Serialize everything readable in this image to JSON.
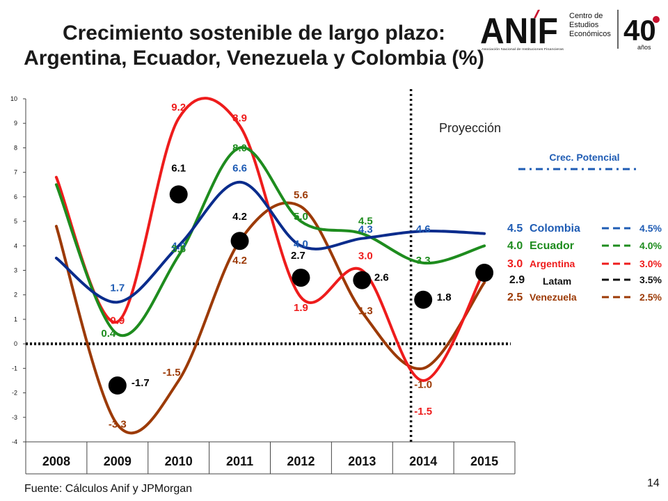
{
  "title_line1": "Crecimiento sostenible de largo plazo:",
  "title_line2": "Argentina, Ecuador, Venezuela y Colombia (%)",
  "logo": {
    "brand": "ANIF",
    "subtitle": "Asociación Nacional de Instituciones Financieras",
    "centro_line1": "Centro de",
    "centro_line2": "Estudios",
    "centro_line3": "Económicos",
    "anniversary_number": "40",
    "anniversary_word": "años"
  },
  "source": "Fuente: Cálculos Anif y  JPMorgan",
  "page_number": "14",
  "chart_data": {
    "type": "line",
    "categories": [
      "2008",
      "2009",
      "2010",
      "2011",
      "2012",
      "2013",
      "2014",
      "2015"
    ],
    "ylim": [
      -4,
      10
    ],
    "yticks": [
      "10",
      "9",
      "8",
      "7",
      "6",
      "5",
      "4",
      "3",
      "2",
      "1",
      "0",
      "-1",
      "-2",
      "-3",
      "-4"
    ],
    "projection_label": "Proyección",
    "potential_header": "Crec. Potencial",
    "series": [
      {
        "name": "Colombia",
        "color": "#0a2c8c",
        "values": [
          3.5,
          1.7,
          4.0,
          6.6,
          4.0,
          4.3,
          4.6,
          4.5
        ],
        "potential": "4.5%",
        "end_label": "4.5"
      },
      {
        "name": "Ecuador",
        "color": "#1e8c1e",
        "values": [
          6.5,
          0.4,
          3.6,
          8.0,
          5.0,
          4.5,
          3.3,
          4.0
        ],
        "potential": "4.0%",
        "end_label": "4.0"
      },
      {
        "name": "Argentina",
        "color": "#ee1c1c",
        "values": [
          6.8,
          0.9,
          9.2,
          8.9,
          1.9,
          3.0,
          -1.5,
          3.0
        ],
        "potential": "3.0%",
        "end_label": "3.0"
      },
      {
        "name": "Latam",
        "color": "#000000",
        "values": [
          null,
          -1.7,
          6.1,
          4.2,
          2.7,
          2.6,
          1.8,
          2.9
        ],
        "potential": "3.5%",
        "end_label": "2.9"
      },
      {
        "name": "Venezuela",
        "color": "#9c3a06",
        "values": [
          4.8,
          -3.3,
          -1.5,
          4.2,
          5.6,
          1.3,
          -1.0,
          2.5
        ],
        "potential": "2.5%",
        "end_label": "2.5"
      }
    ],
    "data_labels": [
      {
        "text": "1.7",
        "color": "#1f5cb4",
        "cat": 1,
        "val": 1.7,
        "dx": 0,
        "dy": -16
      },
      {
        "text": "4.0",
        "color": "#1f5cb4",
        "cat": 2,
        "val": 4.0,
        "dx": 0,
        "dy": 5
      },
      {
        "text": "6.6",
        "color": "#1f5cb4",
        "cat": 3,
        "val": 6.6,
        "dx": 0,
        "dy": -15
      },
      {
        "text": "4.0",
        "color": "#1f5cb4",
        "cat": 4,
        "val": 4.0,
        "dx": 0,
        "dy": 2
      },
      {
        "text": "4.3",
        "color": "#1f5cb4",
        "cat": 5,
        "val": 4.3,
        "dx": 5,
        "dy": -8
      },
      {
        "text": "4.6",
        "color": "#1f5cb4",
        "cat": 6,
        "val": 4.6,
        "dx": 0,
        "dy": 2
      },
      {
        "text": "0.4",
        "color": "#1e8c1e",
        "cat": 1,
        "val": 0.4,
        "dx": -13,
        "dy": 4
      },
      {
        "text": "3.6",
        "color": "#1e8c1e",
        "cat": 2,
        "val": 3.6,
        "dx": 0,
        "dy": -5
      },
      {
        "text": "8.0",
        "color": "#1e8c1e",
        "cat": 3,
        "val": 8.0,
        "dx": 0,
        "dy": 5
      },
      {
        "text": "5.0",
        "color": "#1e8c1e",
        "cat": 4,
        "val": 5.0,
        "dx": 0,
        "dy": -2
      },
      {
        "text": "4.5",
        "color": "#1e8c1e",
        "cat": 5,
        "val": 4.5,
        "dx": 5,
        "dy": -13
      },
      {
        "text": "3.3",
        "color": "#1e8c1e",
        "cat": 6,
        "val": 3.3,
        "dx": 0,
        "dy": 1
      },
      {
        "text": "0.9",
        "color": "#ee1c1c",
        "cat": 1,
        "val": 0.9,
        "dx": 0,
        "dy": 3
      },
      {
        "text": "9.2",
        "color": "#ee1c1c",
        "cat": 2,
        "val": 9.2,
        "dx": 0,
        "dy": -11
      },
      {
        "text": "8.9",
        "color": "#ee1c1c",
        "cat": 3,
        "val": 8.9,
        "dx": 0,
        "dy": -6
      },
      {
        "text": "1.9",
        "color": "#ee1c1c",
        "cat": 4,
        "val": 1.9,
        "dx": 0,
        "dy": 20
      },
      {
        "text": "3.0",
        "color": "#ee1c1c",
        "cat": 5,
        "val": 3.0,
        "dx": 5,
        "dy": -16
      },
      {
        "text": "-1.5",
        "color": "#ee1c1c",
        "cat": 6,
        "val": -1.5,
        "dx": 0,
        "dy": 49
      },
      {
        "text": "-3.3",
        "color": "#9c3a06",
        "cat": 1,
        "val": -3.3,
        "dx": 0,
        "dy": 4
      },
      {
        "text": "-1.5",
        "color": "#9c3a06",
        "cat": 2,
        "val": -1.5,
        "dx": -10,
        "dy": -7
      },
      {
        "text": "4.2",
        "color": "#9c3a06",
        "cat": 3,
        "val": 4.2,
        "dx": 0,
        "dy": 33
      },
      {
        "text": "5.6",
        "color": "#9c3a06",
        "cat": 4,
        "val": 5.6,
        "dx": 0,
        "dy": -12
      },
      {
        "text": "1.3",
        "color": "#9c3a06",
        "cat": 5,
        "val": 1.3,
        "dx": 5,
        "dy": 3
      },
      {
        "text": "-1.0",
        "color": "#9c3a06",
        "cat": 6,
        "val": -1.0,
        "dx": 0,
        "dy": 28
      },
      {
        "text": "6.1",
        "color": "#000000",
        "cat": 2,
        "val": 6.1,
        "dx": 0,
        "dy": -33
      },
      {
        "text": "4.2",
        "color": "#000000",
        "cat": 3,
        "val": 4.2,
        "dx": 0,
        "dy": -30
      },
      {
        "text": "2.7",
        "color": "#000000",
        "cat": 4,
        "val": 2.7,
        "dx": -4,
        "dy": -27
      },
      {
        "text": "-1.7",
        "color": "#000000",
        "cat": 1,
        "val": -1.7,
        "dx": 33,
        "dy": 1
      },
      {
        "text": "2.6",
        "color": "#000000",
        "cat": 5,
        "val": 2.6,
        "dx": 28,
        "dy": 1
      },
      {
        "text": "1.8",
        "color": "#000000",
        "cat": 6,
        "val": 1.8,
        "dx": 30,
        "dy": 1
      }
    ]
  }
}
